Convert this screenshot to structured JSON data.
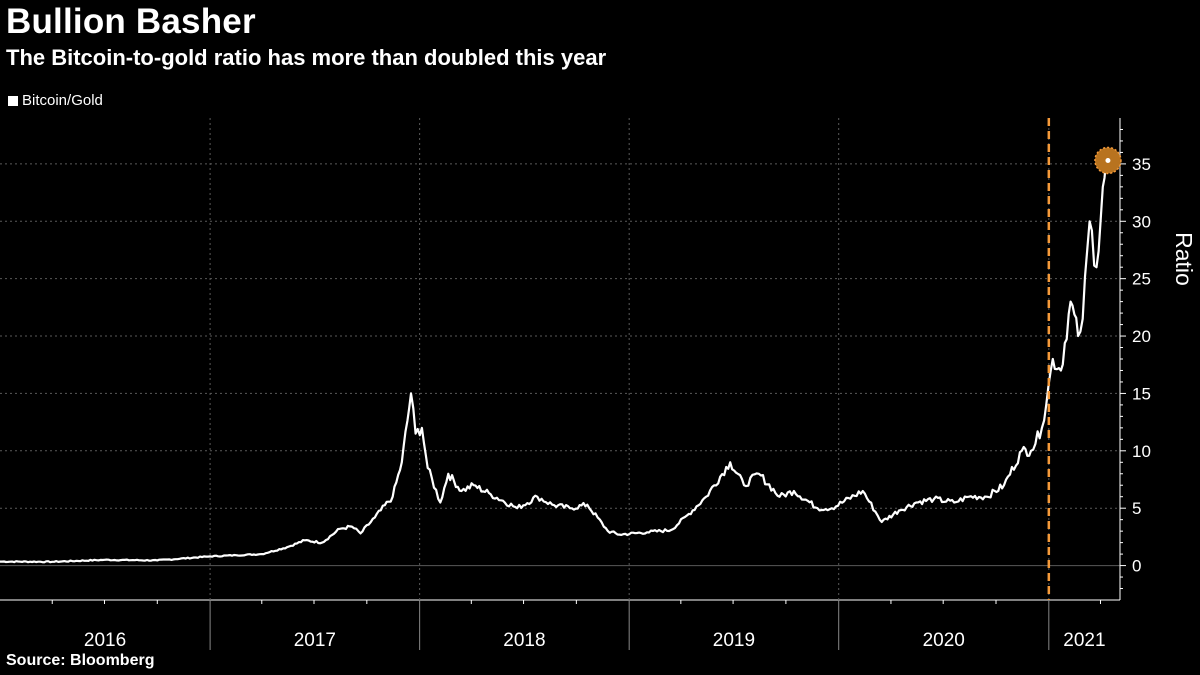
{
  "header": {
    "title": "Bullion Basher",
    "subtitle": "The Bitcoin-to-gold ratio has more than doubled this year"
  },
  "footer": {
    "source": "Source: Bloomberg"
  },
  "colors": {
    "background": "#000000",
    "line": "#ffffff",
    "grid": "#5a5a5a",
    "marker": "#f59a3a",
    "highlight_dot": "#b8731f"
  },
  "chart_data": {
    "type": "line",
    "title": "Bullion Basher",
    "subtitle": "The Bitcoin-to-gold ratio has more than doubled this year",
    "ylabel": "Ratio",
    "xlabel": "",
    "legend": {
      "placement": "top-left",
      "entries": [
        "Bitcoin/Gold"
      ]
    },
    "grid": true,
    "y_axis_position": "right",
    "ylim": [
      -3,
      39
    ],
    "xlim": [
      "2016-01-01",
      "2021-05-05"
    ],
    "y_ticks": [
      0,
      5,
      10,
      15,
      20,
      25,
      30,
      35
    ],
    "x_tick_labels": [
      "2016",
      "2017",
      "2018",
      "2019",
      "2020",
      "2021"
    ],
    "annotations": [
      {
        "type": "vertical-dashed-line",
        "x": "2021-01-01"
      },
      {
        "type": "highlight-point",
        "x": "2021-04-14",
        "y": 35.3
      }
    ],
    "series": [
      {
        "name": "Bitcoin/Gold",
        "x": [
          "2016-01-01",
          "2016-04-01",
          "2016-07-01",
          "2016-10-01",
          "2017-01-01",
          "2017-02-15",
          "2017-04-01",
          "2017-05-15",
          "2017-06-15",
          "2017-07-15",
          "2017-08-15",
          "2017-09-05",
          "2017-09-20",
          "2017-10-15",
          "2017-11-15",
          "2017-12-01",
          "2017-12-17",
          "2017-12-25",
          "2018-01-05",
          "2018-01-15",
          "2018-02-06",
          "2018-02-20",
          "2018-03-15",
          "2018-04-05",
          "2018-05-05",
          "2018-06-20",
          "2018-07-25",
          "2018-08-20",
          "2018-09-20",
          "2018-10-20",
          "2018-11-25",
          "2018-12-15",
          "2019-02-01",
          "2019-03-15",
          "2019-04-15",
          "2019-05-15",
          "2019-06-26",
          "2019-07-20",
          "2019-08-15",
          "2019-09-20",
          "2019-10-15",
          "2019-11-25",
          "2019-12-20",
          "2020-02-12",
          "2020-03-16",
          "2020-04-15",
          "2020-05-15",
          "2020-06-15",
          "2020-07-20",
          "2020-08-15",
          "2020-09-15",
          "2020-10-15",
          "2020-11-15",
          "2020-12-01",
          "2020-12-20",
          "2021-01-08",
          "2021-01-22",
          "2021-02-08",
          "2021-02-21",
          "2021-03-01",
          "2021-03-13",
          "2021-03-25",
          "2021-04-05",
          "2021-04-14"
        ],
        "values": [
          0.35,
          0.33,
          0.5,
          0.45,
          0.8,
          0.9,
          1.0,
          1.6,
          2.2,
          2.0,
          3.2,
          3.4,
          2.8,
          4.2,
          6.0,
          9.0,
          15.0,
          11.5,
          12.0,
          8.5,
          5.5,
          8.0,
          6.5,
          7.0,
          6.2,
          5.0,
          6.0,
          5.3,
          5.0,
          5.3,
          3.0,
          2.7,
          2.9,
          3.1,
          4.5,
          6.0,
          9.0,
          7.0,
          8.0,
          6.0,
          6.5,
          5.0,
          5.0,
          6.5,
          3.8,
          4.8,
          5.5,
          5.8,
          5.5,
          6.0,
          6.0,
          7.0,
          10.0,
          10.0,
          12.0,
          18.0,
          17.0,
          23.0,
          20.0,
          21.5,
          30.0,
          26.0,
          33.0,
          35.3
        ]
      }
    ]
  }
}
